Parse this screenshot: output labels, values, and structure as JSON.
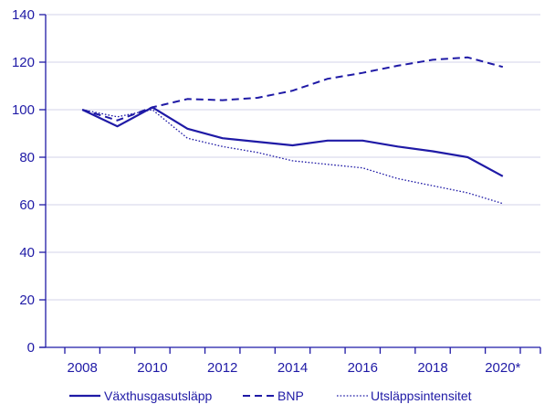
{
  "chart_data": {
    "type": "line",
    "x_tick_labels": [
      "2008",
      "2010",
      "2012",
      "2014",
      "2016",
      "2018",
      "2020*"
    ],
    "x": [
      2008,
      2009,
      2010,
      2011,
      2012,
      2013,
      2014,
      2015,
      2016,
      2017,
      2018,
      2019,
      2020
    ],
    "ylim": [
      0,
      140
    ],
    "yticks": [
      0,
      20,
      40,
      60,
      80,
      100,
      120,
      140
    ],
    "grid": "horizontal",
    "legend_position": "bottom",
    "series": [
      {
        "name": "Växthusgasutsläpp",
        "style": "solid",
        "values": [
          100,
          93,
          101,
          92,
          88,
          86.5,
          85,
          87,
          87,
          84.5,
          82.5,
          80,
          72
        ]
      },
      {
        "name": "BNP",
        "style": "dashed",
        "values": [
          100,
          95.5,
          101,
          104.5,
          104,
          105,
          108,
          113,
          115.5,
          118.5,
          121,
          122,
          118
        ]
      },
      {
        "name": "Utsläppsintensitet",
        "style": "dotted",
        "values": [
          100,
          97,
          100,
          88,
          84.5,
          82,
          78.5,
          77,
          75.5,
          71,
          68,
          65,
          60.5
        ]
      }
    ]
  },
  "colors": {
    "series": "#1f1aa6",
    "axis": "#1f1aa6",
    "grid": "#d3d3e8",
    "tick_text": "#1f1aa6",
    "legend_text": "#1f1aa6"
  }
}
